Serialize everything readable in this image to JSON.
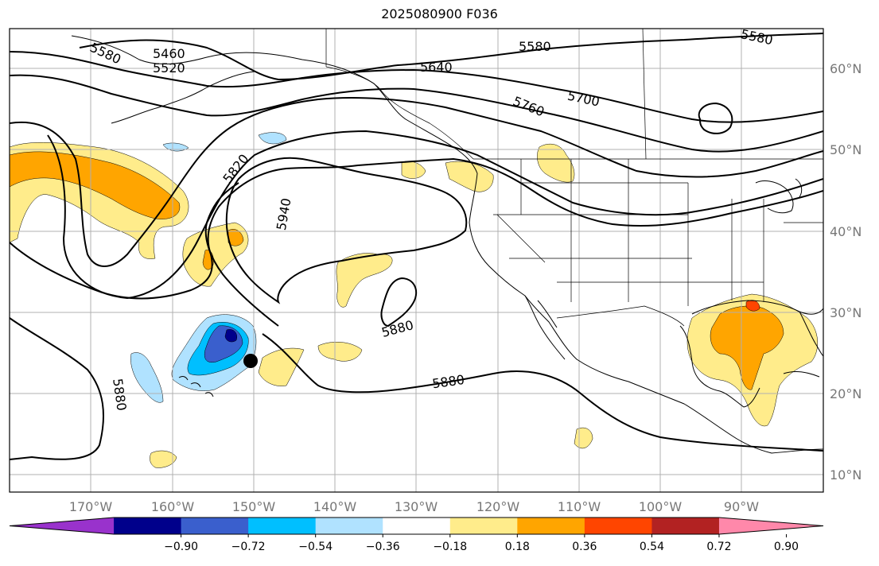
{
  "title": "2025080900 F036",
  "lat_labels": [
    "60°N",
    "50°N",
    "40°N",
    "30°N",
    "20°N",
    "10°N"
  ],
  "lon_labels": [
    "170°W",
    "160°W",
    "150°W",
    "140°W",
    "130°W",
    "120°W",
    "110°W",
    "100°W",
    "90°W"
  ],
  "contour_labels": [
    "5460",
    "5520",
    "5580",
    "5580",
    "5640",
    "5580",
    "5700",
    "5760",
    "5820",
    "5940",
    "5880",
    "5880",
    "5880"
  ],
  "colorbar": {
    "ticks": [
      "−0.90",
      "−0.72",
      "−0.54",
      "−0.36",
      "−0.18",
      "0.18",
      "0.36",
      "0.54",
      "0.72",
      "0.90"
    ],
    "colors": [
      "#9932cc",
      "#00008b",
      "#3a5fcd",
      "#00bfff",
      "#b0e2ff",
      "#ffffff",
      "#ffec8b",
      "#ffa500",
      "#ff4500",
      "#b22222",
      "#ff88aa"
    ]
  },
  "map_style": {
    "grid_color": "#b0b0b0",
    "positive_fill": [
      "#ffec8b",
      "#ffa500",
      "#ff4500"
    ],
    "negative_fill": [
      "#b0e2ff",
      "#00bfff",
      "#3a5fcd",
      "#00008b"
    ]
  },
  "marker": "storm-position-marker"
}
